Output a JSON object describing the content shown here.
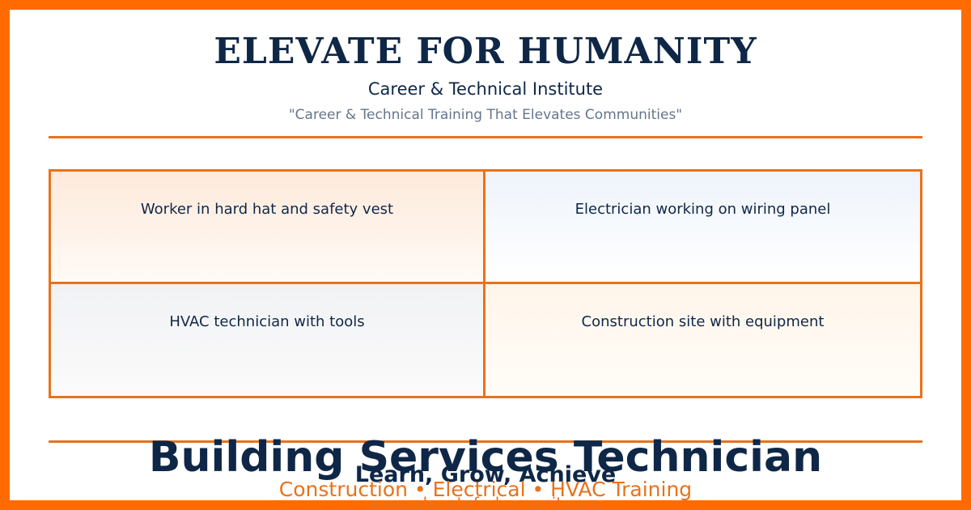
{
  "header": {
    "title": "ELEVATE FOR HUMANITY",
    "subtitle": "Career & Technical Institute",
    "tagline": "\"Career & Technical Training That Elevates Communities\""
  },
  "images": [
    {
      "label": "Worker in hard hat and safety vest"
    },
    {
      "label": "Electrician working on wiring panel"
    },
    {
      "label": "HVAC technician with tools"
    },
    {
      "label": "Construction site with equipment"
    }
  ],
  "footer": {
    "headline": "Building Services Technician",
    "slogan": "Learn, Grow, Achieve",
    "programs": "Construction • Electrical • HVAC Training",
    "website": "www.elevateforhumanity.org"
  },
  "colors": {
    "accent": "#e8721c",
    "border": "#ff6b00",
    "navy": "#0f2747",
    "muted": "#66758c"
  }
}
